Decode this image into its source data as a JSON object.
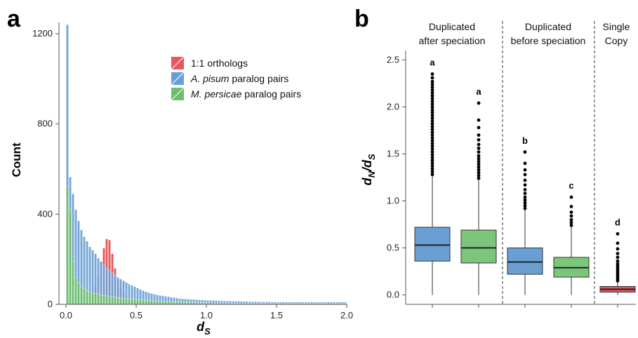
{
  "chart_data": [
    {
      "panel": "a",
      "type": "bar",
      "xlabel": "dS",
      "ylabel": "Count",
      "xlim": [
        -0.05,
        2.0
      ],
      "ylim": [
        0,
        1250
      ],
      "xticks": [
        "0.0",
        "0.5",
        "1.0",
        "1.5",
        "2.0"
      ],
      "xtick_values": [
        0,
        0.5,
        1.0,
        1.5,
        2.0
      ],
      "yticks": [
        "0",
        "400",
        "800",
        "1200"
      ],
      "ytick_values": [
        0,
        400,
        800,
        1200
      ],
      "grid": false,
      "legend_position": "top-right",
      "bin_width": 0.02,
      "series": [
        {
          "name": "1:1 orthologs",
          "color": "#e8575b",
          "values": [
            0,
            0,
            0,
            0,
            0,
            0,
            5,
            10,
            20,
            45,
            80,
            130,
            190,
            250,
            290,
            285,
            225,
            160,
            110,
            75,
            50,
            35,
            25,
            20,
            15,
            12,
            10,
            8,
            6,
            5,
            4,
            3,
            2,
            2,
            1,
            1,
            1,
            1,
            0,
            0,
            0,
            0,
            0,
            0,
            0,
            0,
            0,
            0,
            0,
            0,
            0,
            0,
            0,
            0,
            0,
            0,
            0,
            0,
            0,
            0,
            0,
            0,
            0,
            0,
            0,
            0,
            0,
            0,
            0,
            0,
            0,
            0,
            0,
            0,
            0,
            0,
            0,
            0,
            0,
            0,
            0,
            0,
            0,
            0,
            0,
            0,
            0,
            0,
            0,
            0,
            0,
            0,
            0,
            0,
            0,
            0,
            0,
            0,
            0,
            0
          ]
        },
        {
          "name": "A. pisum paralog pairs",
          "color": "#6a9fd4",
          "values": [
            1240,
            565,
            490,
            420,
            370,
            330,
            300,
            280,
            255,
            240,
            225,
            205,
            190,
            175,
            160,
            150,
            140,
            130,
            120,
            112,
            105,
            98,
            90,
            84,
            78,
            72,
            66,
            61,
            56,
            52,
            48,
            45,
            42,
            40,
            38,
            36,
            34,
            32,
            30,
            28,
            26,
            25,
            24,
            23,
            22,
            22,
            21,
            20,
            20,
            19,
            18,
            18,
            17,
            17,
            16,
            16,
            15,
            15,
            15,
            14,
            14,
            14,
            13,
            13,
            13,
            12,
            12,
            12,
            12,
            11,
            11,
            11,
            11,
            10,
            10,
            10,
            10,
            10,
            10,
            10,
            10,
            10,
            10,
            10,
            10,
            10,
            10,
            10,
            10,
            10,
            10,
            10,
            10,
            10,
            10,
            10,
            10,
            10,
            10,
            10
          ]
        },
        {
          "name": "M. persicae paralog pairs",
          "color": "#6cbf6a",
          "values": [
            520,
            420,
            190,
            120,
            95,
            80,
            70,
            60,
            55,
            50,
            48,
            45,
            42,
            40,
            38,
            36,
            34,
            32,
            30,
            28,
            27,
            26,
            25,
            24,
            23,
            22,
            21,
            20,
            19,
            18,
            17,
            16,
            15,
            14,
            13,
            12,
            12,
            11,
            11,
            10,
            10,
            9,
            9,
            9,
            8,
            8,
            8,
            8,
            7,
            7,
            7,
            7,
            6,
            6,
            6,
            6,
            6,
            5,
            5,
            5,
            5,
            5,
            5,
            5,
            5,
            5,
            4,
            4,
            4,
            4,
            4,
            4,
            4,
            4,
            4,
            4,
            4,
            4,
            4,
            4,
            4,
            4,
            4,
            4,
            4,
            4,
            4,
            4,
            4,
            4,
            4,
            4,
            4,
            4,
            4,
            4,
            4,
            4,
            4,
            4
          ]
        }
      ]
    },
    {
      "panel": "b",
      "type": "boxplot",
      "ylabel": "dN/dS",
      "ylim": [
        -0.1,
        2.6
      ],
      "yticks": [
        "0.0",
        "0.5",
        "1.0",
        "1.5",
        "2.0",
        "2.5"
      ],
      "ytick_values": [
        0,
        0.5,
        1.0,
        1.5,
        2.0,
        2.5
      ],
      "groups": [
        {
          "label_line1": "Duplicated",
          "label_line2": "after speciation"
        },
        {
          "label_line1": "Duplicated",
          "label_line2": "before speciation"
        },
        {
          "label_line1": "Single",
          "label_line2": "Copy"
        }
      ],
      "boxes": [
        {
          "group": 0,
          "color": "#6a9fd4",
          "min": 0.0,
          "q1": 0.36,
          "median": 0.53,
          "q3": 0.72,
          "whisker_high": 1.27,
          "outliers": [
            1.28,
            1.31,
            1.34,
            1.37,
            1.4,
            1.43,
            1.46,
            1.49,
            1.52,
            1.55,
            1.58,
            1.61,
            1.64,
            1.67,
            1.7,
            1.73,
            1.76,
            1.79,
            1.82,
            1.85,
            1.88,
            1.91,
            1.94,
            1.97,
            2.0,
            2.03,
            2.06,
            2.09,
            2.12,
            2.15,
            2.18,
            2.21,
            2.24,
            2.27,
            2.31,
            2.35
          ],
          "letter": "a"
        },
        {
          "group": 0,
          "color": "#7cc67c",
          "min": 0.0,
          "q1": 0.34,
          "median": 0.5,
          "q3": 0.69,
          "whisker_high": 1.22,
          "outliers": [
            1.24,
            1.27,
            1.3,
            1.33,
            1.36,
            1.39,
            1.42,
            1.45,
            1.48,
            1.52,
            1.56,
            1.6,
            1.65,
            1.7,
            1.78,
            1.86,
            2.04
          ],
          "letter": "a"
        },
        {
          "group": 1,
          "color": "#6a9fd4",
          "min": 0.0,
          "q1": 0.22,
          "median": 0.35,
          "q3": 0.5,
          "whisker_high": 0.9,
          "outliers": [
            0.92,
            0.95,
            0.98,
            1.01,
            1.04,
            1.08,
            1.12,
            1.17,
            1.22,
            1.28,
            1.33,
            1.4,
            1.52
          ],
          "letter": "b"
        },
        {
          "group": 1,
          "color": "#7cc67c",
          "min": 0.0,
          "q1": 0.19,
          "median": 0.29,
          "q3": 0.4,
          "whisker_high": 0.72,
          "outliers": [
            0.74,
            0.77,
            0.8,
            0.84,
            0.88,
            0.94,
            1.04
          ],
          "letter": "c"
        },
        {
          "group": 2,
          "color": "#e8575b",
          "min": 0.0,
          "q1": 0.03,
          "median": 0.06,
          "q3": 0.09,
          "whisker_high": 0.14,
          "outliers": [
            0.15,
            0.17,
            0.19,
            0.21,
            0.23,
            0.25,
            0.27,
            0.29,
            0.31,
            0.33,
            0.36,
            0.4,
            0.44,
            0.49,
            0.55,
            0.65
          ],
          "letter": "d"
        }
      ]
    }
  ],
  "labels": {
    "panel_a": "a",
    "panel_b": "b",
    "a_xlabel_main": "d",
    "a_xlabel_sub": "S",
    "a_ylabel": "Count",
    "b_ylabel_main1": "d",
    "b_ylabel_sub1": "N",
    "b_ylabel_slash": "/",
    "b_ylabel_main2": "d",
    "b_ylabel_sub2": "S",
    "legend_1": "1:1 orthologs",
    "legend_2_italic": "A. pisum",
    "legend_2_rest": " paralog pairs",
    "legend_3_italic": "M. persicae",
    "legend_3_rest": " paralog pairs",
    "group_1_line1": "Duplicated",
    "group_1_line2": "after speciation",
    "group_2_line1": "Duplicated",
    "group_2_line2": "before speciation",
    "group_3_line1": "Single",
    "group_3_line2": "Copy"
  }
}
